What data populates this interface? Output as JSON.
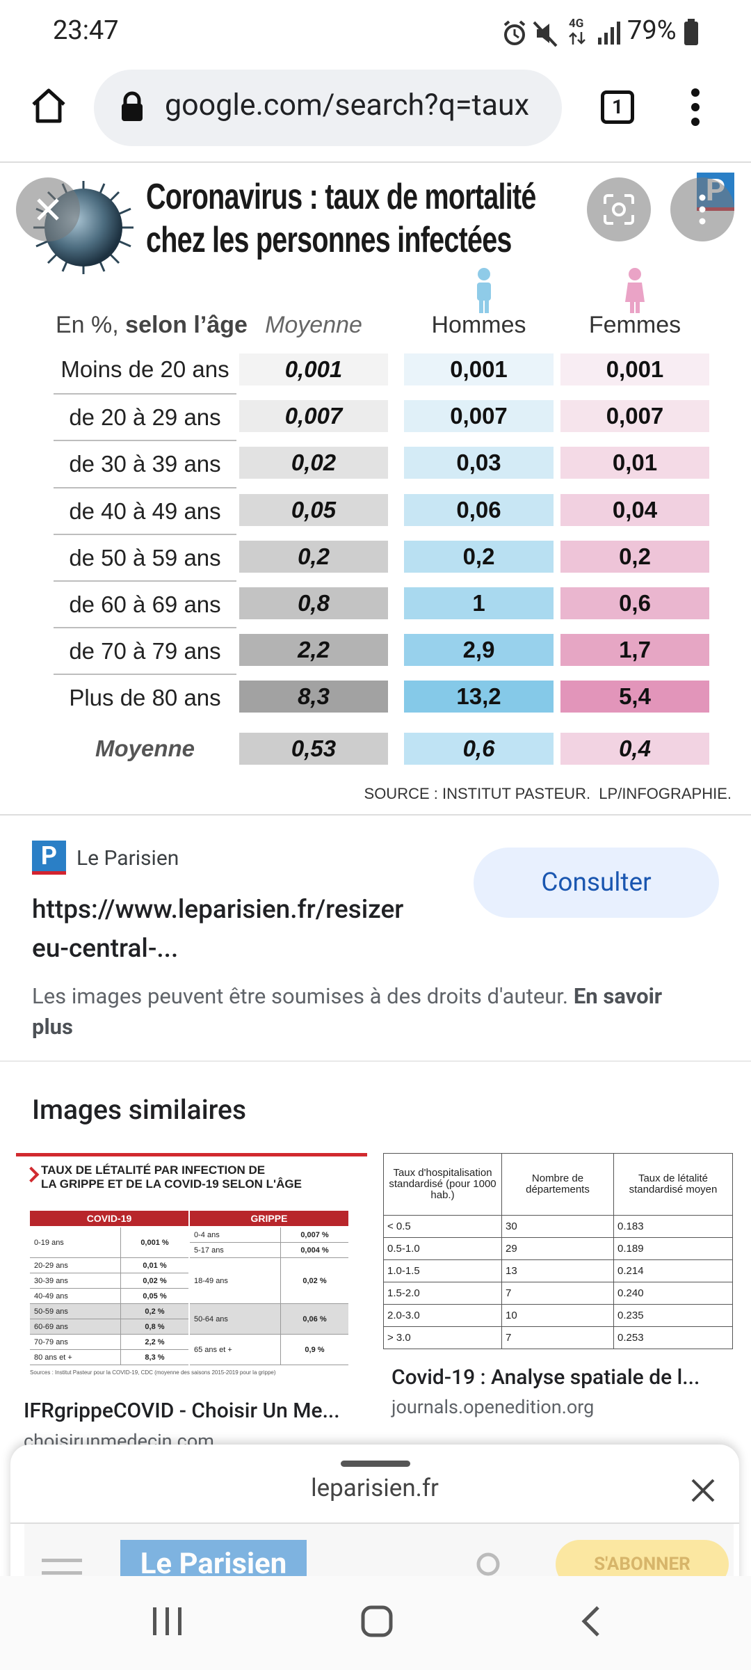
{
  "status_bar": {
    "time": "23:47",
    "network": "4G",
    "battery": "79%"
  },
  "browser": {
    "url": "google.com/search?q=taux",
    "tab_count": "1"
  },
  "image": {
    "title": [
      "Coronavirus : taux de mortalité",
      "chez les personnes infectées"
    ],
    "badge": "P",
    "headers": {
      "unit": "En %,",
      "age": "selon l’âge",
      "average": "Moyenne",
      "men": "Hommes",
      "women": "Femmes"
    },
    "rows": [
      [
        "Moins de 20 ans",
        "0,001",
        "0,001",
        "0,001"
      ],
      [
        "de 20 à 29 ans",
        "0,007",
        "0,007",
        "0,007"
      ],
      [
        "de 30 à 39 ans",
        "0,02",
        "0,03",
        "0,01"
      ],
      [
        "de 40 à 49 ans",
        "0,05",
        "0,06",
        "0,04"
      ],
      [
        "de 50 à 59 ans",
        "0,2",
        "0,2",
        "0,2"
      ],
      [
        "de 60 à 69 ans",
        "0,8",
        "1",
        "0,6"
      ],
      [
        "de 70 à 79 ans",
        "2,2",
        "2,9",
        "1,7"
      ],
      [
        "Plus de 80 ans",
        "8,3",
        "13,2",
        "5,4"
      ]
    ],
    "average_row": [
      "Moyenne",
      "0,53",
      "0,6",
      "0,4"
    ],
    "source": "SOURCE : INSTITUT PASTEUR.  LP/INFOGRAPHIE."
  },
  "result": {
    "logo": "P",
    "site": "Le Parisien",
    "url_lines": [
      "https://www.leparisien.fr/resizer",
      "eu-central-..."
    ],
    "button": "Consulter",
    "notice": "Les images peuvent être soumises à des droits d'auteur.",
    "notice_link": "En savoir plus"
  },
  "similar": {
    "heading": "Images similaires",
    "items": [
      {
        "caption": "IFRgrippeCOVID - Choisir Un Me...",
        "source": "choisirunmedecin.com",
        "thumb": {
          "title": [
            "TAUX DE LÉTALITÉ PAR INFECTION DE",
            "LA GRIPPE ET DE LA COVID-19 SELON L'ÂGE"
          ],
          "columns": [
            "COVID-19",
            "GRIPPE"
          ],
          "covid": [
            [
              "0-19 ans",
              "0,001 %"
            ],
            [
              "20-29 ans",
              "0,01 %"
            ],
            [
              "30-39 ans",
              "0,02 %"
            ],
            [
              "40-49 ans",
              "0,05 %"
            ],
            [
              "50-59 ans",
              "0,2 %"
            ],
            [
              "60-69 ans",
              "0,8 %"
            ],
            [
              "70-79 ans",
              "2,2 %"
            ],
            [
              "80 ans et +",
              "8,3 %"
            ]
          ],
          "grippe": [
            [
              "0-4 ans",
              "0,007 %"
            ],
            [
              "5-17 ans",
              "0,004 %"
            ],
            [
              "18-49 ans",
              "0,02 %"
            ],
            [
              "50-64 ans",
              "0,06 %"
            ],
            [
              "65 ans et +",
              "0,9 %"
            ]
          ],
          "source": "Sources : Institut Pasteur pour la COVID-19, CDC (moyenne des saisons 2015-2019 pour la grippe)"
        }
      },
      {
        "caption": "Covid-19 : Analyse spatiale de l...",
        "source": "journals.openedition.org",
        "thumb": {
          "headers": [
            "Taux d'hospitalisation standardisé (pour 1000 hab.)",
            "Nombre de départements",
            "Taux de létalité standardisé moyen"
          ],
          "rows": [
            [
              "< 0.5",
              "30",
              "0.183"
            ],
            [
              "0.5-1.0",
              "29",
              "0.189"
            ],
            [
              "1.0-1.5",
              "13",
              "0.214"
            ],
            [
              "1.5-2.0",
              "7",
              "0.240"
            ],
            [
              "2.0-3.0",
              "10",
              "0.235"
            ],
            [
              "> 3.0",
              "7",
              "0.253"
            ]
          ]
        }
      }
    ]
  },
  "sheet": {
    "domain": "leparisien.fr",
    "site_logo": "Le Parisien",
    "subscribe": "S'ABONNER"
  }
}
